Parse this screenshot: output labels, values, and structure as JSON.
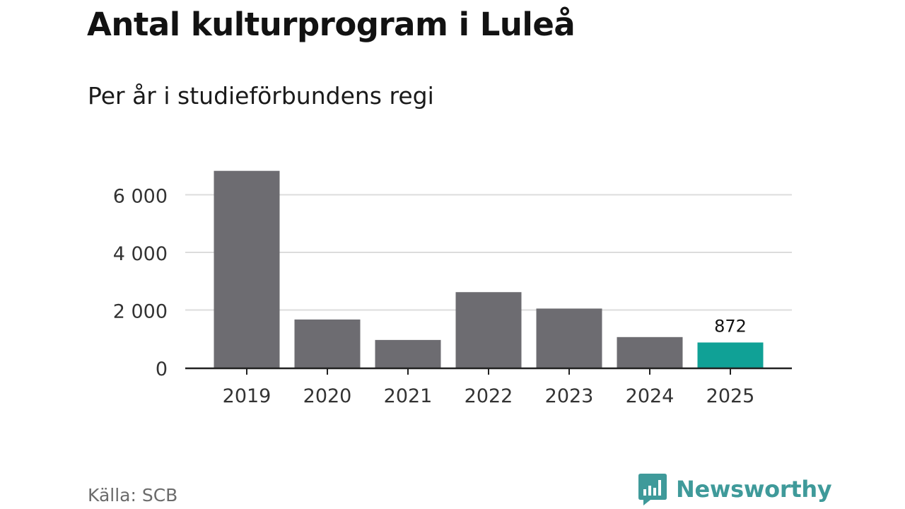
{
  "chart_data": {
    "type": "bar",
    "title": "Antal kulturprogram i Luleå",
    "subtitle": "Per år i studieförbundens regi",
    "categories": [
      "2019",
      "2020",
      "2021",
      "2022",
      "2023",
      "2024",
      "2025"
    ],
    "values": [
      6830,
      1670,
      960,
      2620,
      2050,
      1060,
      872
    ],
    "ylim": [
      0,
      7000
    ],
    "yticks": [
      0,
      2000,
      4000,
      6000
    ],
    "ytick_labels": [
      "0",
      "2 000",
      "4 000",
      "6 000"
    ],
    "grid": true,
    "data_labels": [
      {
        "index": 6,
        "text": "872"
      }
    ],
    "colors": {
      "bar": "#6d6c71",
      "highlight": "#10a196",
      "grid": "#dcdcdc",
      "axis": "#222222"
    },
    "highlight_index": 6,
    "source": "Källa: SCB"
  },
  "brand": {
    "name": "Newsworthy",
    "icon": "bar-chart-speech-bubble-icon",
    "color": "#3f9a9a"
  }
}
